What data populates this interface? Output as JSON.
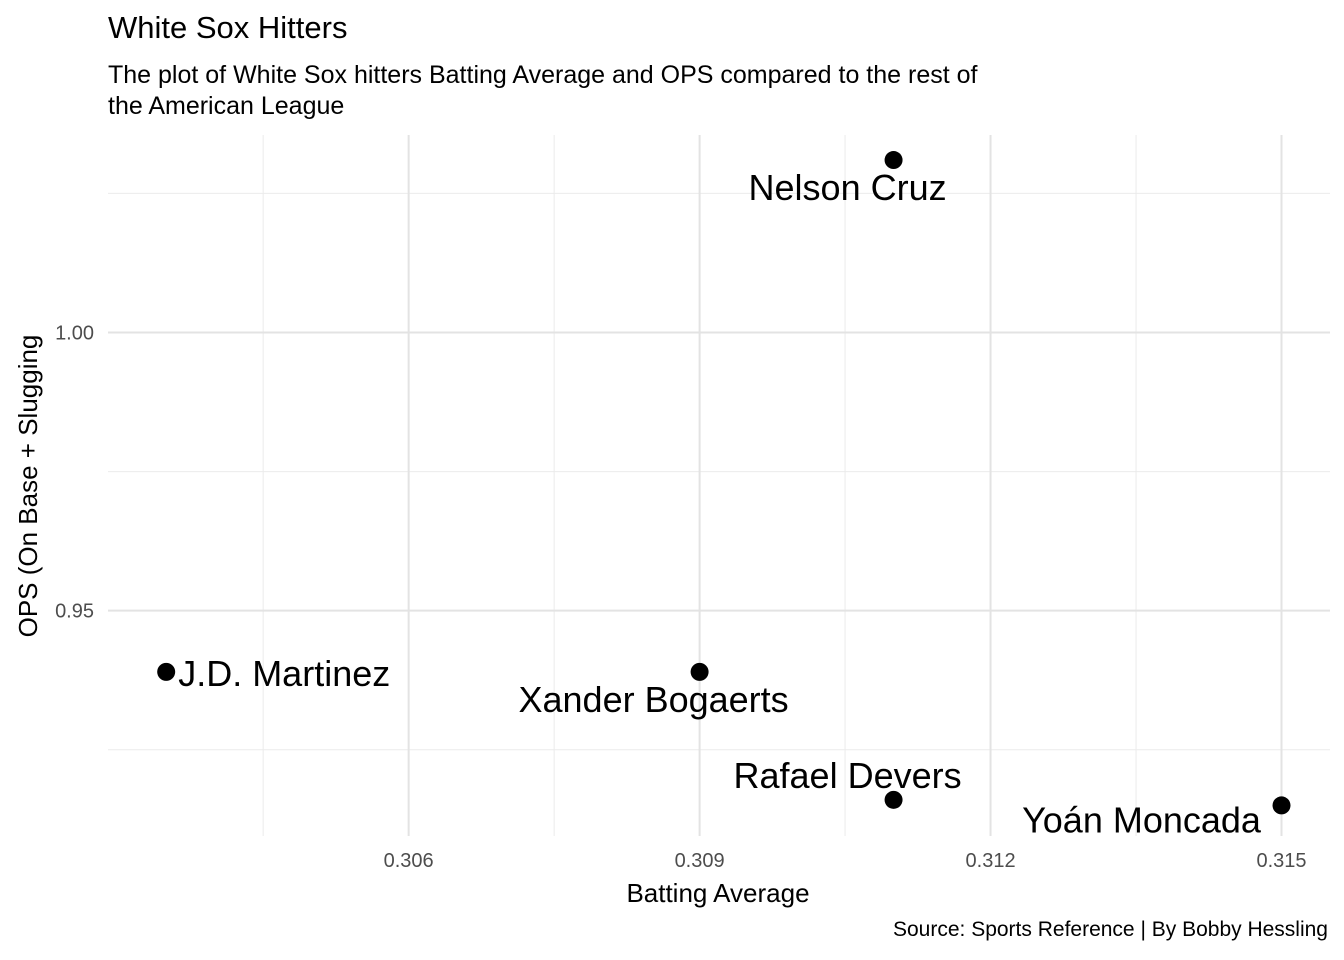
{
  "chart_data": {
    "type": "scatter",
    "title": "White Sox Hitters",
    "subtitle": "The plot of White Sox hitters Batting Average and OPS compared to the rest of the American League",
    "caption": "Source: Sports Reference | By Bobby Hessling",
    "xlabel": "Batting Average",
    "ylabel": "OPS (On Base + Slugging",
    "xlim": [
      0.3029,
      0.3155
    ],
    "ylim": [
      0.9095,
      1.0355
    ],
    "xticks": [
      {
        "value": 0.306,
        "label": "0.306"
      },
      {
        "value": 0.309,
        "label": "0.309"
      },
      {
        "value": 0.312,
        "label": "0.312"
      },
      {
        "value": 0.315,
        "label": "0.315"
      }
    ],
    "yticks": [
      {
        "value": 0.95,
        "label": "0.95"
      },
      {
        "value": 1.0,
        "label": "1.00"
      }
    ],
    "grid": true,
    "point_color": "#000000",
    "points": [
      {
        "name": "Nelson Cruz",
        "x": 0.311,
        "y": 1.031
      },
      {
        "name": "J.D. Martinez",
        "x": 0.3035,
        "y": 0.939
      },
      {
        "name": "Xander Bogaerts",
        "x": 0.309,
        "y": 0.939
      },
      {
        "name": "Rafael Devers",
        "x": 0.311,
        "y": 0.916
      },
      {
        "name": "Yoán Moncada",
        "x": 0.315,
        "y": 0.915
      }
    ]
  }
}
